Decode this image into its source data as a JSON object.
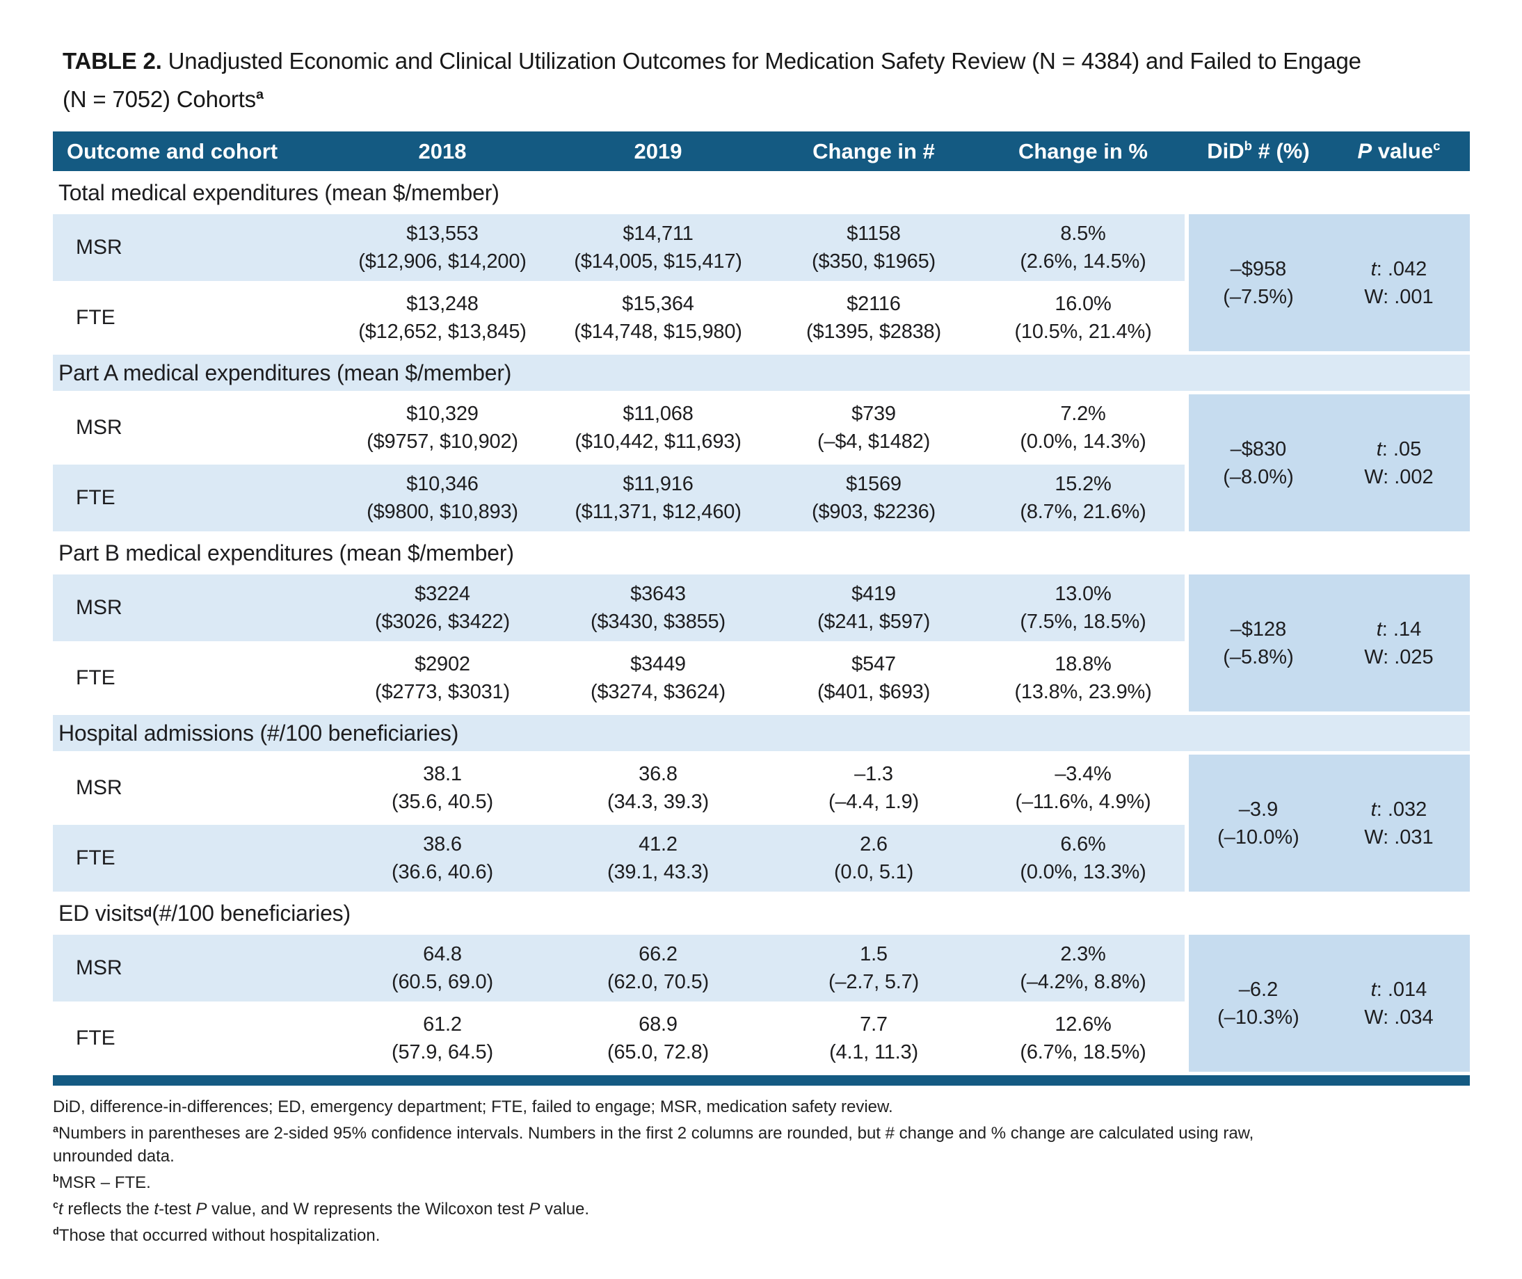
{
  "colors": {
    "bar": "#145a82",
    "stripe": "#dbe9f5",
    "merged": "#c6dcef",
    "ink": "#1d1d1f",
    "hdtext": "#ffffff"
  },
  "title": {
    "line1": [
      {
        "t": "TABLE 2.",
        "s": "b"
      },
      {
        "t": " Unadjusted Economic and Clinical Utilization Outcomes for Medication Safety Review (N = 4384) and Failed to Engage"
      }
    ],
    "line2": [
      {
        "t": "(N = 7052) Cohorts"
      },
      {
        "t": "a",
        "s": "sup"
      }
    ]
  },
  "header": {
    "outcome": "Outcome and cohort",
    "y2018": "2018",
    "y2019": "2019",
    "change_num": "Change in #",
    "change_pct": "Change in %",
    "did": [
      {
        "t": "DiD"
      },
      {
        "t": "b",
        "s": "sup"
      },
      {
        "t": " # (%)"
      }
    ],
    "pvalue": [
      {
        "t": "P",
        "s": "i"
      },
      {
        "t": " value"
      },
      {
        "t": "c",
        "s": "sup"
      }
    ]
  },
  "sections": [
    {
      "label_runs": [
        {
          "t": "Total medical expenditures (mean $/member)"
        }
      ],
      "rows": [
        {
          "cohort": "MSR",
          "y2018": "$13,553",
          "y2018_ci": "($12,906, $14,200)",
          "y2019": "$14,711",
          "y2019_ci": "($14,005, $15,417)",
          "chg": "$1158",
          "chg_ci": "($350, $1965)",
          "pct": "8.5%",
          "pct_ci": "(2.6%, 14.5%)"
        },
        {
          "cohort": "FTE",
          "y2018": "$13,248",
          "y2018_ci": "($12,652, $13,845)",
          "y2019": "$15,364",
          "y2019_ci": "($14,748, $15,980)",
          "chg": "$2116",
          "chg_ci": "($1395, $2838)",
          "pct": "16.0%",
          "pct_ci": "(10.5%, 21.4%)"
        }
      ],
      "did": "–$958",
      "did_pct": "(–7.5%)",
      "t_runs": [
        {
          "t": "t",
          "s": "i"
        },
        {
          "t": ": .042"
        }
      ],
      "w": "W: .001"
    },
    {
      "label_runs": [
        {
          "t": "Part A medical expenditures (mean $/member)"
        }
      ],
      "rows": [
        {
          "cohort": "MSR",
          "y2018": "$10,329",
          "y2018_ci": "($9757, $10,902)",
          "y2019": "$11,068",
          "y2019_ci": "($10,442, $11,693)",
          "chg": "$739",
          "chg_ci": "(–$4, $1482)",
          "pct": "7.2%",
          "pct_ci": "(0.0%, 14.3%)"
        },
        {
          "cohort": "FTE",
          "y2018": "$10,346",
          "y2018_ci": "($9800, $10,893)",
          "y2019": "$11,916",
          "y2019_ci": "($11,371, $12,460)",
          "chg": "$1569",
          "chg_ci": "($903, $2236)",
          "pct": "15.2%",
          "pct_ci": "(8.7%, 21.6%)"
        }
      ],
      "did": "–$830",
      "did_pct": "(–8.0%)",
      "t_runs": [
        {
          "t": "t",
          "s": "i"
        },
        {
          "t": ": .05"
        }
      ],
      "w": "W: .002"
    },
    {
      "label_runs": [
        {
          "t": "Part B medical expenditures (mean $/member)"
        }
      ],
      "rows": [
        {
          "cohort": "MSR",
          "y2018": "$3224",
          "y2018_ci": "($3026, $3422)",
          "y2019": "$3643",
          "y2019_ci": "($3430, $3855)",
          "chg": "$419",
          "chg_ci": "($241, $597)",
          "pct": "13.0%",
          "pct_ci": "(7.5%, 18.5%)"
        },
        {
          "cohort": "FTE",
          "y2018": "$2902",
          "y2018_ci": "($2773, $3031)",
          "y2019": "$3449",
          "y2019_ci": "($3274, $3624)",
          "chg": "$547",
          "chg_ci": "($401, $693)",
          "pct": "18.8%",
          "pct_ci": "(13.8%, 23.9%)"
        }
      ],
      "did": "–$128",
      "did_pct": "(–5.8%)",
      "t_runs": [
        {
          "t": "t",
          "s": "i"
        },
        {
          "t": ": .14"
        }
      ],
      "w": "W: .025"
    },
    {
      "label_runs": [
        {
          "t": "Hospital admissions (#/100 beneficiaries)"
        }
      ],
      "rows": [
        {
          "cohort": "MSR",
          "y2018": "38.1",
          "y2018_ci": "(35.6, 40.5)",
          "y2019": "36.8",
          "y2019_ci": "(34.3, 39.3)",
          "chg": "–1.3",
          "chg_ci": "(–4.4, 1.9)",
          "pct": "–3.4%",
          "pct_ci": "(–11.6%, 4.9%)"
        },
        {
          "cohort": "FTE",
          "y2018": "38.6",
          "y2018_ci": "(36.6, 40.6)",
          "y2019": "41.2",
          "y2019_ci": "(39.1, 43.3)",
          "chg": "2.6",
          "chg_ci": "(0.0, 5.1)",
          "pct": "6.6%",
          "pct_ci": "(0.0%, 13.3%)"
        }
      ],
      "did": "–3.9",
      "did_pct": "(–10.0%)",
      "t_runs": [
        {
          "t": "t",
          "s": "i"
        },
        {
          "t": ": .032"
        }
      ],
      "w": "W: .031"
    },
    {
      "label_runs": [
        {
          "t": "ED visits"
        },
        {
          "t": "d",
          "s": "sup"
        },
        {
          "t": " (#/100 beneficiaries)"
        }
      ],
      "rows": [
        {
          "cohort": "MSR",
          "y2018": "64.8",
          "y2018_ci": "(60.5, 69.0)",
          "y2019": "66.2",
          "y2019_ci": "(62.0, 70.5)",
          "chg": "1.5",
          "chg_ci": "(–2.7, 5.7)",
          "pct": "2.3%",
          "pct_ci": "(–4.2%, 8.8%)"
        },
        {
          "cohort": "FTE",
          "y2018": "61.2",
          "y2018_ci": "(57.9, 64.5)",
          "y2019": "68.9",
          "y2019_ci": "(65.0, 72.8)",
          "chg": "7.7",
          "chg_ci": "(4.1, 11.3)",
          "pct": "12.6%",
          "pct_ci": "(6.7%, 18.5%)"
        }
      ],
      "did": "–6.2",
      "did_pct": "(–10.3%)",
      "t_runs": [
        {
          "t": "t",
          "s": "i"
        },
        {
          "t": ": .014"
        }
      ],
      "w": "W: .034"
    }
  ],
  "footnotes": [
    [
      {
        "t": "DiD, difference-in-differences; ED, emergency department; FTE, failed to engage; MSR, medication safety review."
      }
    ],
    [
      {
        "t": "a",
        "s": "sup"
      },
      {
        "t": "Numbers in parentheses are 2-sided 95% confidence intervals. Numbers in the first 2 columns are rounded, but # change and % change are calculated using raw,"
      }
    ],
    [
      {
        "t": "unrounded data."
      }
    ],
    [
      {
        "t": "b",
        "s": "sup"
      },
      {
        "t": "MSR – FTE."
      }
    ],
    [
      {
        "t": "c",
        "s": "sup"
      },
      {
        "t": "t",
        "s": "i"
      },
      {
        "t": " reflects the "
      },
      {
        "t": "t",
        "s": "i"
      },
      {
        "t": "-test "
      },
      {
        "t": "P",
        "s": "i"
      },
      {
        "t": " value, and W represents the Wilcoxon test "
      },
      {
        "t": "P",
        "s": "i"
      },
      {
        "t": " value."
      }
    ],
    [
      {
        "t": "d",
        "s": "sup"
      },
      {
        "t": "Those that occurred without hospitalization."
      }
    ]
  ]
}
